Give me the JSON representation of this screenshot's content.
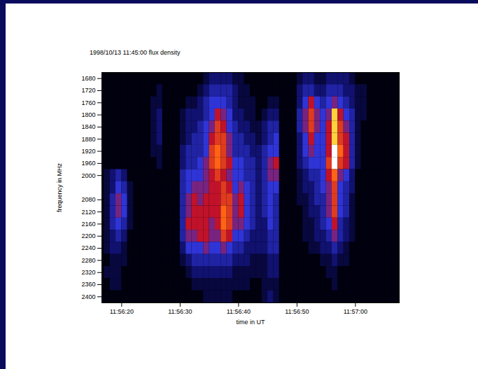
{
  "chart_data": {
    "type": "heatmap",
    "title": "1998/10/13 11:45:00 flux density",
    "x_label": "time in UT",
    "y_label": "frequency in MHz",
    "x": [
      17.5,
      18.5,
      19.5,
      20.5,
      21.5,
      22.5,
      23.5,
      24.5,
      25.5,
      26.5,
      27.5,
      28.5,
      29.5,
      30.5,
      31.5,
      32.5,
      33.5,
      34.5,
      35.5,
      36.5,
      37.5,
      38.5,
      39.5,
      40.5,
      41.5,
      42.5,
      43.5,
      44.5,
      45.5,
      46.5,
      47.5,
      48.5,
      49.5,
      50.5,
      51.5,
      52.5,
      53.5,
      54.5,
      55.5,
      56.5,
      57.5,
      58.5,
      59.5,
      60.5,
      61.5,
      62.5,
      63.5,
      64.5,
      65.5,
      66.5
    ],
    "y": [
      1680,
      1720,
      1760,
      1800,
      1840,
      1880,
      1920,
      1960,
      2000,
      2040,
      2080,
      2120,
      2160,
      2200,
      2240,
      2280,
      2320,
      2360,
      2400
    ],
    "cells": [
      [
        0,
        0,
        0,
        0,
        0,
        0,
        0,
        0,
        0,
        0,
        0,
        0,
        0,
        0,
        0,
        0,
        0,
        1,
        2,
        2,
        2,
        2,
        1,
        1,
        0,
        0,
        0,
        0,
        0,
        0,
        0,
        0,
        0,
        1,
        2,
        2,
        1,
        1,
        2,
        2,
        2,
        2,
        1,
        0,
        0,
        0,
        0,
        0,
        0,
        0
      ],
      [
        0,
        0,
        0,
        0,
        0,
        0,
        0,
        0,
        0,
        1,
        0,
        0,
        0,
        0,
        0,
        0,
        1,
        2,
        3,
        3,
        3,
        3,
        2,
        1,
        1,
        0,
        0,
        0,
        0,
        0,
        0,
        0,
        0,
        2,
        3,
        3,
        2,
        2,
        3,
        3,
        3,
        2,
        2,
        1,
        1,
        0,
        0,
        0,
        0,
        0
      ],
      [
        0,
        0,
        0,
        0,
        0,
        0,
        0,
        0,
        1,
        1,
        0,
        0,
        0,
        0,
        1,
        1,
        2,
        3,
        4,
        4,
        4,
        3,
        2,
        1,
        1,
        1,
        0,
        0,
        1,
        1,
        0,
        0,
        0,
        2,
        4,
        6,
        4,
        3,
        4,
        5,
        4,
        3,
        2,
        1,
        1,
        0,
        0,
        0,
        0,
        0
      ],
      [
        0,
        0,
        0,
        0,
        0,
        0,
        0,
        0,
        1,
        2,
        0,
        0,
        0,
        1,
        2,
        2,
        2,
        3,
        4,
        6,
        5,
        4,
        2,
        2,
        1,
        1,
        0,
        1,
        2,
        2,
        0,
        0,
        0,
        3,
        5,
        7,
        5,
        4,
        5,
        9,
        6,
        4,
        3,
        1,
        1,
        0,
        0,
        0,
        0,
        0
      ],
      [
        0,
        0,
        0,
        0,
        0,
        0,
        0,
        0,
        1,
        2,
        0,
        0,
        0,
        1,
        2,
        2,
        3,
        4,
        5,
        7,
        6,
        4,
        3,
        2,
        2,
        1,
        1,
        2,
        3,
        3,
        0,
        0,
        0,
        3,
        5,
        7,
        5,
        4,
        6,
        9,
        7,
        5,
        3,
        1,
        0,
        0,
        0,
        0,
        0,
        0
      ],
      [
        0,
        0,
        0,
        0,
        0,
        0,
        0,
        0,
        1,
        2,
        0,
        0,
        0,
        1,
        2,
        3,
        3,
        4,
        6,
        7,
        7,
        5,
        3,
        3,
        2,
        2,
        1,
        2,
        3,
        4,
        0,
        0,
        0,
        2,
        4,
        6,
        4,
        4,
        6,
        9,
        7,
        6,
        3,
        1,
        0,
        0,
        0,
        0,
        0,
        0
      ],
      [
        0,
        0,
        0,
        0,
        0,
        0,
        0,
        0,
        1,
        1,
        0,
        0,
        0,
        2,
        3,
        3,
        3,
        4,
        7,
        8,
        7,
        5,
        3,
        3,
        3,
        2,
        2,
        3,
        4,
        4,
        0,
        0,
        0,
        2,
        4,
        5,
        4,
        4,
        6,
        10,
        8,
        6,
        3,
        1,
        0,
        0,
        0,
        0,
        0,
        0
      ],
      [
        0,
        0,
        0,
        0,
        0,
        0,
        0,
        0,
        0,
        1,
        0,
        0,
        0,
        2,
        3,
        3,
        4,
        5,
        7,
        8,
        7,
        6,
        4,
        4,
        3,
        3,
        2,
        3,
        5,
        6,
        0,
        0,
        0,
        2,
        3,
        4,
        4,
        4,
        7,
        10,
        7,
        6,
        3,
        1,
        0,
        0,
        0,
        0,
        0,
        0
      ],
      [
        1,
        2,
        3,
        2,
        0,
        0,
        0,
        0,
        0,
        0,
        0,
        0,
        0,
        3,
        4,
        4,
        4,
        5,
        6,
        7,
        6,
        5,
        4,
        4,
        3,
        3,
        2,
        3,
        5,
        5,
        0,
        0,
        0,
        1,
        2,
        3,
        3,
        4,
        6,
        8,
        5,
        4,
        2,
        0,
        0,
        0,
        0,
        0,
        0,
        0
      ],
      [
        1,
        2,
        4,
        3,
        1,
        0,
        0,
        0,
        0,
        0,
        0,
        0,
        0,
        3,
        4,
        5,
        5,
        5,
        6,
        6,
        7,
        6,
        4,
        5,
        4,
        3,
        2,
        3,
        4,
        4,
        0,
        0,
        0,
        1,
        2,
        2,
        3,
        4,
        5,
        7,
        4,
        3,
        2,
        0,
        0,
        0,
        0,
        0,
        0,
        0
      ],
      [
        1,
        3,
        5,
        4,
        1,
        0,
        0,
        0,
        0,
        0,
        0,
        0,
        0,
        3,
        5,
        6,
        5,
        6,
        6,
        6,
        7,
        7,
        5,
        6,
        4,
        3,
        2,
        3,
        4,
        3,
        0,
        0,
        0,
        1,
        1,
        2,
        3,
        3,
        5,
        7,
        4,
        3,
        1,
        0,
        0,
        0,
        0,
        0,
        0,
        0
      ],
      [
        1,
        3,
        5,
        4,
        1,
        0,
        0,
        0,
        0,
        0,
        0,
        0,
        0,
        3,
        5,
        6,
        6,
        6,
        6,
        6,
        8,
        7,
        5,
        6,
        4,
        3,
        2,
        3,
        4,
        3,
        0,
        0,
        0,
        0,
        1,
        2,
        2,
        3,
        5,
        7,
        4,
        3,
        1,
        0,
        0,
        0,
        0,
        0,
        0,
        0
      ],
      [
        1,
        3,
        4,
        3,
        1,
        0,
        0,
        0,
        0,
        0,
        0,
        0,
        0,
        3,
        6,
        6,
        6,
        6,
        5,
        6,
        8,
        7,
        5,
        5,
        4,
        3,
        2,
        2,
        4,
        3,
        0,
        0,
        0,
        0,
        1,
        1,
        2,
        3,
        4,
        6,
        3,
        2,
        1,
        0,
        0,
        0,
        0,
        0,
        0,
        0
      ],
      [
        1,
        2,
        3,
        2,
        0,
        0,
        0,
        0,
        0,
        0,
        0,
        0,
        0,
        3,
        5,
        5,
        6,
        6,
        5,
        5,
        7,
        6,
        4,
        4,
        3,
        2,
        2,
        2,
        3,
        3,
        0,
        0,
        0,
        0,
        1,
        1,
        2,
        2,
        3,
        5,
        3,
        2,
        1,
        0,
        0,
        0,
        0,
        0,
        0,
        0
      ],
      [
        1,
        2,
        2,
        1,
        0,
        0,
        0,
        0,
        0,
        0,
        0,
        0,
        0,
        2,
        4,
        4,
        4,
        5,
        4,
        4,
        5,
        4,
        3,
        3,
        2,
        2,
        2,
        2,
        3,
        3,
        0,
        0,
        0,
        0,
        0,
        1,
        1,
        2,
        2,
        3,
        2,
        1,
        0,
        0,
        0,
        0,
        0,
        0,
        0,
        0
      ],
      [
        0,
        1,
        1,
        1,
        0,
        0,
        0,
        0,
        0,
        0,
        0,
        0,
        0,
        1,
        2,
        3,
        3,
        3,
        3,
        3,
        3,
        3,
        2,
        2,
        2,
        1,
        1,
        1,
        2,
        2,
        0,
        0,
        0,
        0,
        0,
        0,
        0,
        1,
        1,
        2,
        1,
        1,
        0,
        0,
        0,
        0,
        0,
        0,
        0,
        0
      ],
      [
        1,
        1,
        1,
        0,
        0,
        0,
        0,
        0,
        0,
        0,
        0,
        0,
        0,
        0,
        1,
        2,
        2,
        2,
        2,
        2,
        2,
        2,
        1,
        1,
        1,
        1,
        1,
        1,
        2,
        2,
        0,
        0,
        0,
        0,
        0,
        0,
        0,
        0,
        1,
        1,
        0,
        0,
        0,
        0,
        0,
        0,
        0,
        0,
        0,
        0
      ],
      [
        0,
        1,
        1,
        0,
        0,
        0,
        0,
        0,
        0,
        0,
        0,
        0,
        0,
        0,
        0,
        1,
        1,
        1,
        1,
        1,
        1,
        1,
        1,
        1,
        1,
        0,
        0,
        1,
        1,
        1,
        0,
        0,
        0,
        0,
        0,
        0,
        0,
        0,
        0,
        1,
        0,
        0,
        0,
        0,
        0,
        0,
        0,
        0,
        0,
        0
      ],
      [
        0,
        0,
        0,
        0,
        0,
        0,
        0,
        0,
        0,
        0,
        0,
        0,
        0,
        0,
        0,
        0,
        0,
        1,
        1,
        1,
        1,
        1,
        0,
        0,
        0,
        0,
        0,
        1,
        2,
        1,
        0,
        0,
        0,
        0,
        0,
        0,
        0,
        0,
        0,
        0,
        0,
        0,
        0,
        0,
        0,
        0,
        0,
        0,
        0,
        0
      ]
    ],
    "xlim": [
      16.6,
      67.5
    ],
    "ylim": [
      1660,
      2420
    ],
    "xticks": [
      {
        "value": 20,
        "label": "11:56:20"
      },
      {
        "value": 30,
        "label": "11:56:30"
      },
      {
        "value": 40,
        "label": "11:56:40"
      },
      {
        "value": 50,
        "label": "11:56:50"
      },
      {
        "value": 60,
        "label": "11:57:00"
      }
    ],
    "yticks": [
      1680,
      1720,
      1760,
      1800,
      1840,
      1880,
      1920,
      1960,
      2000,
      2080,
      2120,
      2160,
      2200,
      2240,
      2280,
      2320,
      2360,
      2400
    ]
  }
}
